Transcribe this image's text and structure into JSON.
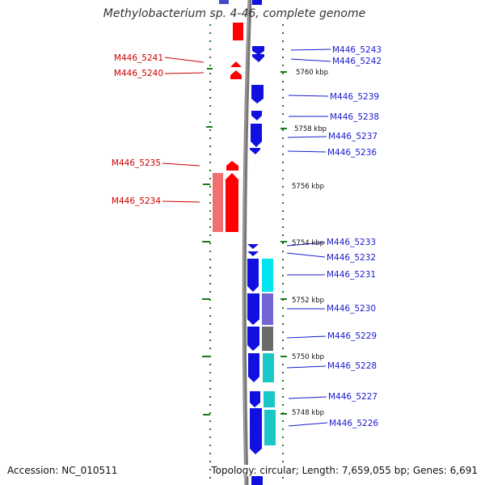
{
  "header": {
    "title": "Methylobacterium sp. 4-46, complete genome"
  },
  "footer": {
    "accession": "Accession: NC_010511",
    "topology": "Topology: circular",
    "length": "Length: 7,659,055 bp",
    "genes": "Genes: 6,691"
  },
  "scale_labels": [
    "5760 kbp",
    "5758 kbp",
    "5756 kbp",
    "5754 kbp",
    "5752 kbp",
    "5750 kbp",
    "5748 kbp"
  ],
  "genes_left": [
    {
      "label": "M446_5241"
    },
    {
      "label": "M446_5240"
    },
    {
      "label": "M446_5235"
    },
    {
      "label": "M446_5234"
    }
  ],
  "genes_right": [
    {
      "label": "M446_5243"
    },
    {
      "label": "M446_5242"
    },
    {
      "label": "M446_5239"
    },
    {
      "label": "M446_5238"
    },
    {
      "label": "M446_5237"
    },
    {
      "label": "M446_5236"
    },
    {
      "label": "M446_5233"
    },
    {
      "label": "M446_5232"
    },
    {
      "label": "M446_5231"
    },
    {
      "label": "M446_5230"
    },
    {
      "label": "M446_5229"
    },
    {
      "label": "M446_5228"
    },
    {
      "label": "M446_5227"
    },
    {
      "label": "M446_5226"
    }
  ],
  "colors": {
    "forward_strand": "#ff0000",
    "reverse_strand": "#1010e0",
    "left_label": "#cc0000",
    "right_label": "#1a1ad0",
    "tick": "#1a7a1a",
    "backbone": "#777777",
    "cog_cyan": "#00e5ee",
    "cog_teal": "#1bc6c6",
    "cog_purple": "#7465d6",
    "cog_gray": "#6a6a6a",
    "cog_pink": "#f07070"
  }
}
